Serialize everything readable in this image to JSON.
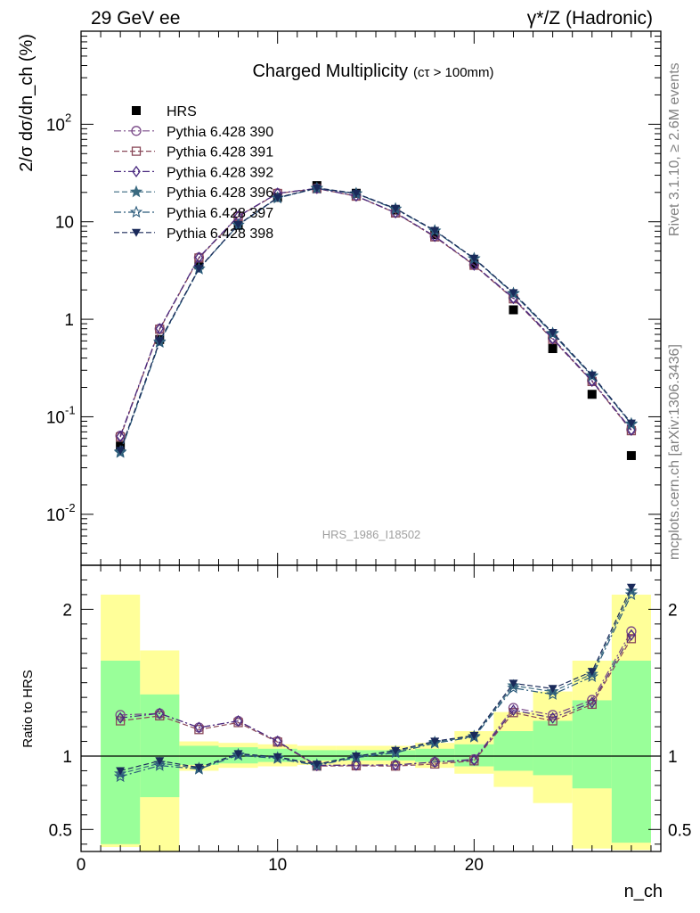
{
  "header": {
    "left": "29 GeV ee",
    "right": "γ*/Z (Hadronic)"
  },
  "side_labels": {
    "rivet": "Rivet 3.1.10, ≥ 2.6M events",
    "mcplots": "mcplots.cern.ch [arXiv:1306.3436]"
  },
  "chart_data": {
    "type": "scatter",
    "title": "Charged Multiplicity",
    "title_suffix": "(cτ > 100mm)",
    "analysis_tag": "HRS_1986_I18502",
    "xlabel": "n_ch",
    "ylabel": "2/σ dσ/dn_ch (%)",
    "ratio_ylabel": "Ratio to HRS",
    "xlim": [
      0,
      29.5
    ],
    "ylim": [
      0.003,
      900
    ],
    "yscale": "log",
    "ratio_ylim": [
      0.35,
      2.3
    ],
    "x": [
      2,
      4,
      6,
      8,
      10,
      12,
      14,
      16,
      18,
      20,
      22,
      24,
      26,
      28
    ],
    "series": [
      {
        "name": "HRS",
        "marker": "square-filled",
        "color": "#000000",
        "values": [
          0.05,
          0.62,
          3.6,
          9.2,
          17.8,
          23.5,
          19.6,
          13.2,
          7.4,
          3.7,
          1.25,
          0.5,
          0.17,
          0.04
        ]
      },
      {
        "name": "Pythia 6.428 390",
        "marker": "circle-open",
        "color": "#7a4a88",
        "values": [
          0.064,
          0.8,
          4.3,
          11.4,
          19.6,
          22.0,
          18.4,
          12.4,
          7.1,
          3.62,
          1.66,
          0.64,
          0.235,
          0.074
        ]
      },
      {
        "name": "Pythia 6.428 391",
        "marker": "square-open",
        "color": "#8a4a5a",
        "values": [
          0.062,
          0.79,
          4.25,
          11.3,
          19.5,
          21.9,
          18.3,
          12.3,
          7.0,
          3.58,
          1.62,
          0.62,
          0.23,
          0.072
        ]
      },
      {
        "name": "Pythia 6.428 392",
        "marker": "diamond-open",
        "color": "#4a2a80",
        "values": [
          0.063,
          0.8,
          4.3,
          11.4,
          19.6,
          22.0,
          18.4,
          12.4,
          7.1,
          3.6,
          1.64,
          0.63,
          0.232,
          0.073
        ]
      },
      {
        "name": "Pythia 6.428 396",
        "marker": "star-filled",
        "color": "#3a6a80",
        "values": [
          0.044,
          0.59,
          3.3,
          9.3,
          17.6,
          22.1,
          19.5,
          13.6,
          8.1,
          4.2,
          1.85,
          0.72,
          0.265,
          0.085
        ]
      },
      {
        "name": "Pythia 6.428 397",
        "marker": "star-open",
        "color": "#2a5a7a",
        "values": [
          0.043,
          0.58,
          3.28,
          9.25,
          17.5,
          22.0,
          19.4,
          13.5,
          8.05,
          4.18,
          1.83,
          0.71,
          0.262,
          0.084
        ]
      },
      {
        "name": "Pythia 6.428 398",
        "marker": "triangle-down-filled",
        "color": "#1a2a5a",
        "values": [
          0.045,
          0.6,
          3.32,
          9.35,
          17.7,
          22.2,
          19.6,
          13.7,
          8.15,
          4.22,
          1.87,
          0.73,
          0.268,
          0.086
        ]
      }
    ],
    "ratio_bands": {
      "edges": [
        1,
        3,
        5,
        7,
        9,
        11,
        13,
        15,
        17,
        19,
        21,
        23,
        25,
        27,
        29
      ],
      "green": [
        [
          0.4,
          1.65
        ],
        [
          0.72,
          1.42
        ],
        [
          0.94,
          1.07
        ],
        [
          0.95,
          1.06
        ],
        [
          0.96,
          1.05
        ],
        [
          0.97,
          1.04
        ],
        [
          0.97,
          1.04
        ],
        [
          0.97,
          1.04
        ],
        [
          0.96,
          1.05
        ],
        [
          0.93,
          1.08
        ],
        [
          0.9,
          1.17
        ],
        [
          0.87,
          1.24
        ],
        [
          0.78,
          1.38
        ],
        [
          0.41,
          1.65
        ]
      ],
      "yellow": [
        [
          0.38,
          2.1
        ],
        [
          0.35,
          1.72
        ],
        [
          0.9,
          1.1
        ],
        [
          0.92,
          1.09
        ],
        [
          0.93,
          1.08
        ],
        [
          0.94,
          1.07
        ],
        [
          0.94,
          1.07
        ],
        [
          0.94,
          1.07
        ],
        [
          0.92,
          1.09
        ],
        [
          0.88,
          1.17
        ],
        [
          0.79,
          1.3
        ],
        [
          0.68,
          1.44
        ],
        [
          0.37,
          1.65
        ],
        [
          0.36,
          2.1
        ]
      ]
    }
  }
}
